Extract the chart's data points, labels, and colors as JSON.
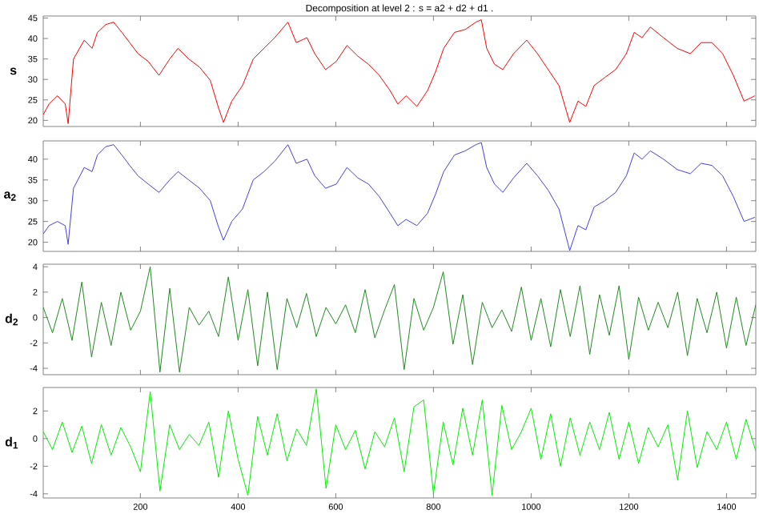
{
  "chart_data": [
    {
      "type": "line",
      "title": "Decomposition at level 2 : s = a2 + d2 + d1 .",
      "ylabel": "s",
      "tick_labels": "y",
      "xlim": [
        1,
        1460
      ],
      "xticks": [
        200,
        400,
        600,
        800,
        1000,
        1200,
        1400
      ],
      "ylim": [
        18.5,
        45.5
      ],
      "yticks": [
        20,
        25,
        30,
        35,
        40,
        45
      ],
      "x": [
        1,
        13,
        30,
        46,
        52,
        63,
        85,
        101,
        112,
        129,
        145,
        162,
        178,
        195,
        216,
        238,
        260,
        277,
        299,
        321,
        343,
        359,
        370,
        387,
        409,
        431,
        453,
        475,
        502,
        519,
        541,
        557,
        579,
        601,
        623,
        645,
        667,
        689,
        711,
        727,
        744,
        766,
        788,
        804,
        821,
        843,
        865,
        887,
        898,
        909,
        925,
        942,
        964,
        991,
        1013,
        1035,
        1057,
        1079,
        1096,
        1112,
        1129,
        1151,
        1173,
        1195,
        1211,
        1227,
        1244,
        1271,
        1299,
        1326,
        1348,
        1370,
        1392,
        1414,
        1436,
        1458
      ],
      "series": [
        {
          "color": "#ff0000",
          "values": [
            21.4,
            24,
            26,
            24,
            19.2,
            35,
            39.6,
            37.6,
            41.5,
            43.4,
            44,
            41.5,
            39,
            36.3,
            34.4,
            31,
            35,
            37.6,
            35,
            33,
            29.8,
            23.4,
            19.5,
            24.7,
            28.5,
            35,
            37.6,
            40.2,
            44,
            39,
            40.2,
            36.3,
            32.4,
            34.4,
            38.3,
            35.7,
            33.7,
            31,
            27.3,
            24,
            26,
            23.4,
            27.3,
            31.8,
            37.6,
            41.5,
            42.2,
            44,
            44.6,
            37.6,
            33.7,
            32.4,
            36.3,
            39.6,
            36.3,
            32.4,
            28.5,
            19.5,
            24.7,
            23.4,
            28.5,
            30.5,
            32.4,
            36.3,
            41.5,
            40.2,
            42.8,
            40.2,
            37.6,
            36.3,
            39,
            39,
            36.3,
            31,
            24.7,
            26
          ]
        }
      ]
    },
    {
      "type": "line",
      "ylabel": "a$_{2}$",
      "tick_labels": "y",
      "xlim": [
        1,
        1460
      ],
      "xticks": [
        200,
        400,
        600,
        800,
        1000,
        1200,
        1400
      ],
      "ylim": [
        17.8,
        44.4
      ],
      "yticks": [
        20,
        25,
        30,
        35,
        40
      ],
      "x": [
        1,
        13,
        30,
        46,
        52,
        63,
        85,
        101,
        112,
        129,
        145,
        162,
        178,
        195,
        216,
        238,
        260,
        277,
        299,
        321,
        343,
        359,
        370,
        387,
        409,
        431,
        453,
        475,
        502,
        519,
        541,
        557,
        579,
        601,
        623,
        645,
        667,
        689,
        711,
        727,
        744,
        766,
        788,
        804,
        821,
        843,
        865,
        887,
        898,
        909,
        925,
        942,
        964,
        991,
        1013,
        1035,
        1057,
        1079,
        1096,
        1112,
        1129,
        1151,
        1173,
        1195,
        1211,
        1227,
        1244,
        1271,
        1299,
        1326,
        1348,
        1370,
        1392,
        1414,
        1436,
        1458
      ],
      "series": [
        {
          "color": "#4040e0",
          "values": [
            22,
            24,
            25,
            24,
            19.5,
            33,
            38,
            37,
            41,
            43,
            43.5,
            41,
            38.5,
            36,
            34,
            32,
            35,
            37,
            35,
            33,
            30,
            24,
            20.5,
            25,
            28,
            35,
            37,
            39.5,
            43.5,
            39,
            40,
            36,
            33,
            34,
            38,
            35.5,
            34,
            31,
            27,
            24,
            25.5,
            24,
            27,
            31.5,
            37,
            41,
            42,
            43.5,
            44,
            38,
            34,
            32,
            35.5,
            39,
            36,
            32.5,
            28,
            18,
            24,
            23,
            28.5,
            30,
            32,
            36,
            41.5,
            40,
            42,
            40,
            37.5,
            36.5,
            39,
            38.5,
            36,
            31,
            25,
            26
          ]
        }
      ]
    },
    {
      "type": "line",
      "ylabel": "d$_{2}$",
      "tick_labels": "y",
      "xlim": [
        1,
        1460
      ],
      "xticks": [
        200,
        400,
        600,
        800,
        1000,
        1200,
        1400
      ],
      "ylim": [
        -4.5,
        4.2
      ],
      "yticks": [
        -4,
        -2,
        0,
        2,
        4
      ],
      "x": [
        1,
        20,
        40,
        60,
        80,
        100,
        120,
        140,
        160,
        180,
        200,
        220,
        240,
        260,
        280,
        300,
        320,
        340,
        360,
        380,
        400,
        420,
        440,
        460,
        480,
        500,
        520,
        540,
        560,
        580,
        600,
        620,
        640,
        660,
        680,
        700,
        720,
        740,
        760,
        780,
        800,
        820,
        840,
        860,
        880,
        900,
        920,
        940,
        960,
        980,
        1000,
        1020,
        1040,
        1060,
        1080,
        1100,
        1120,
        1140,
        1160,
        1180,
        1200,
        1220,
        1240,
        1260,
        1280,
        1300,
        1320,
        1340,
        1360,
        1380,
        1400,
        1420,
        1440,
        1460
      ],
      "series": [
        {
          "color": "#1f8a1f",
          "values": [
            0.8,
            -1.2,
            1.5,
            -1.8,
            2.8,
            -3.1,
            1.2,
            -2.2,
            2.0,
            -1.0,
            0.5,
            4.0,
            -4.3,
            2.3,
            -4.3,
            0.8,
            -0.6,
            0.5,
            -1.5,
            3.2,
            -1.8,
            2.2,
            -3.8,
            2.0,
            -4.1,
            1.5,
            -0.8,
            1.9,
            -1.5,
            0.8,
            -0.5,
            1.0,
            -1.2,
            2.2,
            -1.6,
            0.6,
            2.6,
            -4.1,
            1.5,
            -1.0,
            0.8,
            3.6,
            -2.1,
            1.8,
            -3.7,
            1.2,
            -0.8,
            0.6,
            -1.1,
            2.4,
            -1.8,
            1.5,
            -2.3,
            2.2,
            -1.5,
            2.5,
            -2.9,
            1.8,
            -1.4,
            2.5,
            -3.3,
            1.6,
            -1.0,
            1.2,
            -0.8,
            2.0,
            -3.0,
            1.5,
            -1.2,
            2.0,
            -2.4,
            1.6,
            -2.2,
            1.0
          ]
        }
      ]
    },
    {
      "type": "line",
      "ylabel": "d$_{1}$",
      "xlim": [
        1,
        1460
      ],
      "xticks": [
        200,
        400,
        600,
        800,
        1000,
        1200,
        1400
      ],
      "ylim": [
        -4.3,
        3.7
      ],
      "yticks": [
        -4,
        -2,
        0,
        2
      ],
      "x": [
        1,
        20,
        40,
        60,
        80,
        100,
        120,
        140,
        160,
        180,
        200,
        220,
        240,
        260,
        280,
        300,
        320,
        340,
        360,
        380,
        400,
        420,
        440,
        460,
        480,
        500,
        520,
        540,
        560,
        580,
        600,
        620,
        640,
        660,
        680,
        700,
        720,
        740,
        760,
        780,
        800,
        820,
        840,
        860,
        880,
        900,
        920,
        940,
        960,
        980,
        1000,
        1020,
        1040,
        1060,
        1080,
        1100,
        1120,
        1140,
        1160,
        1180,
        1200,
        1220,
        1240,
        1260,
        1280,
        1300,
        1320,
        1340,
        1360,
        1380,
        1400,
        1420,
        1440,
        1460
      ],
      "series": [
        {
          "color": "#00ee00",
          "values": [
            0.5,
            -0.8,
            1.2,
            -1.0,
            0.9,
            -1.8,
            1.0,
            -1.2,
            0.8,
            -0.6,
            -2.4,
            3.4,
            -3.8,
            1.0,
            -0.8,
            0.3,
            -0.5,
            1.2,
            -2.8,
            2.0,
            -1.5,
            -4.1,
            1.6,
            -1.2,
            1.8,
            -1.6,
            0.7,
            -0.5,
            3.6,
            -3.6,
            1.0,
            -0.8,
            0.6,
            -2.2,
            0.5,
            -0.6,
            1.5,
            -2.4,
            2.3,
            2.8,
            -4.0,
            1.2,
            -1.9,
            2.2,
            -1.2,
            2.8,
            -4.1,
            2.4,
            -0.8,
            0.5,
            2.2,
            -1.5,
            1.8,
            -2.0,
            1.5,
            -1.2,
            1.2,
            -0.8,
            1.9,
            -1.5,
            1.2,
            -1.8,
            0.8,
            -0.6,
            1.0,
            -3.0,
            2.0,
            -2.1,
            0.5,
            -0.8,
            1.2,
            -1.5,
            1.4,
            -0.9
          ]
        }
      ]
    }
  ]
}
